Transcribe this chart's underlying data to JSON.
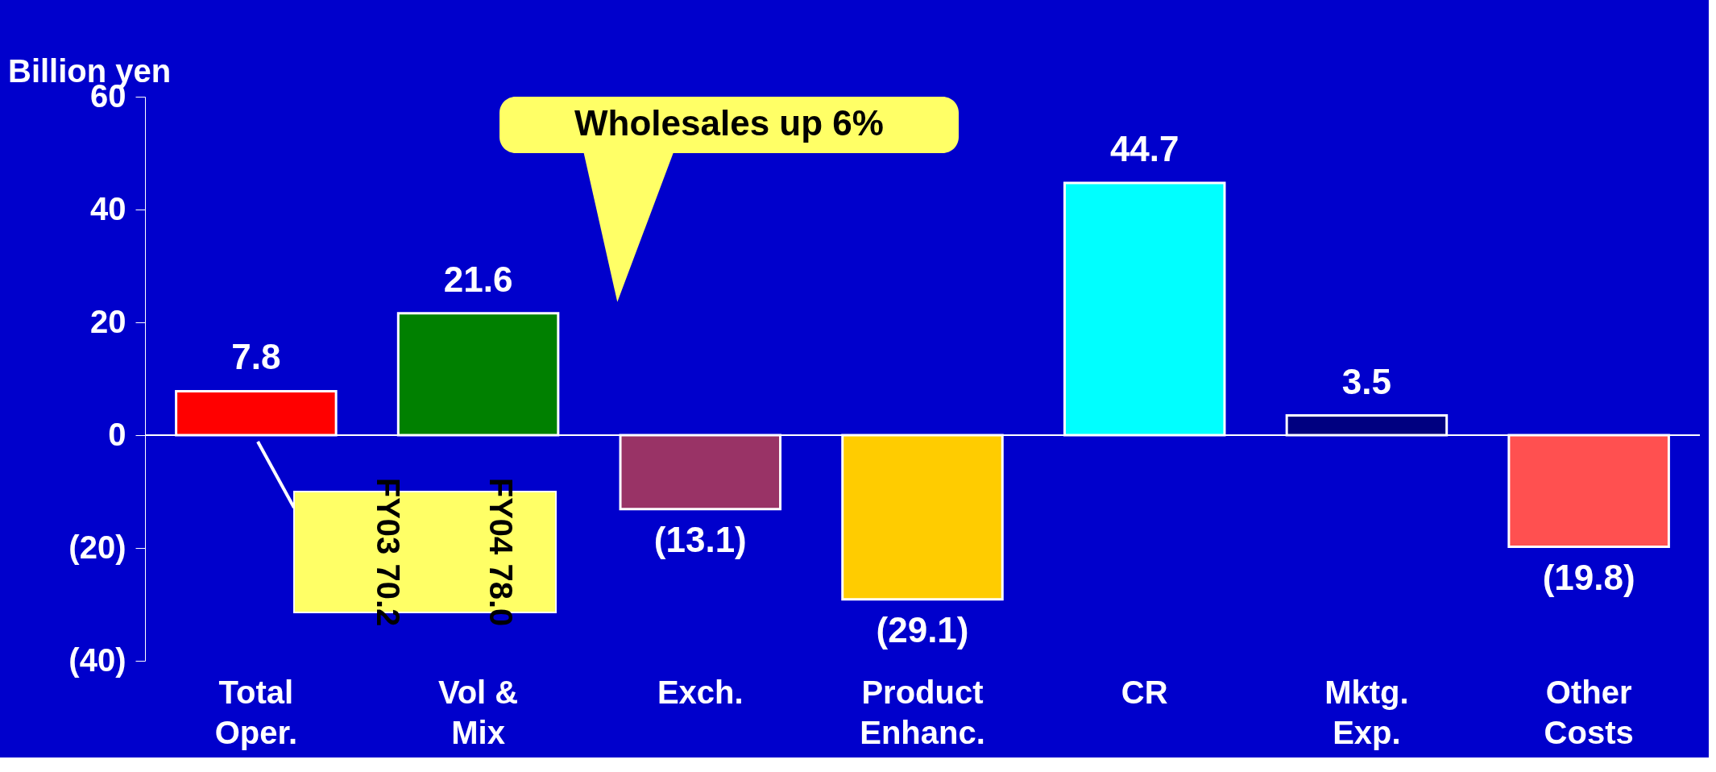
{
  "chart_data": {
    "type": "bar",
    "ylabel": "Billion yen",
    "categories": [
      "Total\nOper.",
      "Vol &\nMix",
      "Exch.",
      "Product\nEnhanc.",
      "CR",
      "Mktg.\nExp.",
      "Other\nCosts"
    ],
    "values": [
      7.8,
      21.6,
      -13.1,
      -29.1,
      44.7,
      3.5,
      -19.8
    ],
    "colors": [
      "#ff0000",
      "#008000",
      "#993366",
      "#ffcc00",
      "#00ffff",
      "#000080",
      "#ff5050"
    ],
    "value_labels": [
      "7.8",
      "21.6",
      "(13.1)",
      "(29.1)",
      "44.7",
      "3.5",
      "(19.8)"
    ],
    "ylim": [
      -40,
      60
    ],
    "yticks": [
      60,
      40,
      20,
      0,
      {
        "value": -20,
        "label": "(20)"
      },
      {
        "value": -40,
        "label": "(40)"
      }
    ],
    "grid": false,
    "ref_lines": [
      {
        "axis": "y",
        "value": 0,
        "color": "#ffffff"
      }
    ],
    "annotations": [
      "Wholesales up 6%",
      "FY04 78.0",
      "FY03 70.2"
    ]
  }
}
